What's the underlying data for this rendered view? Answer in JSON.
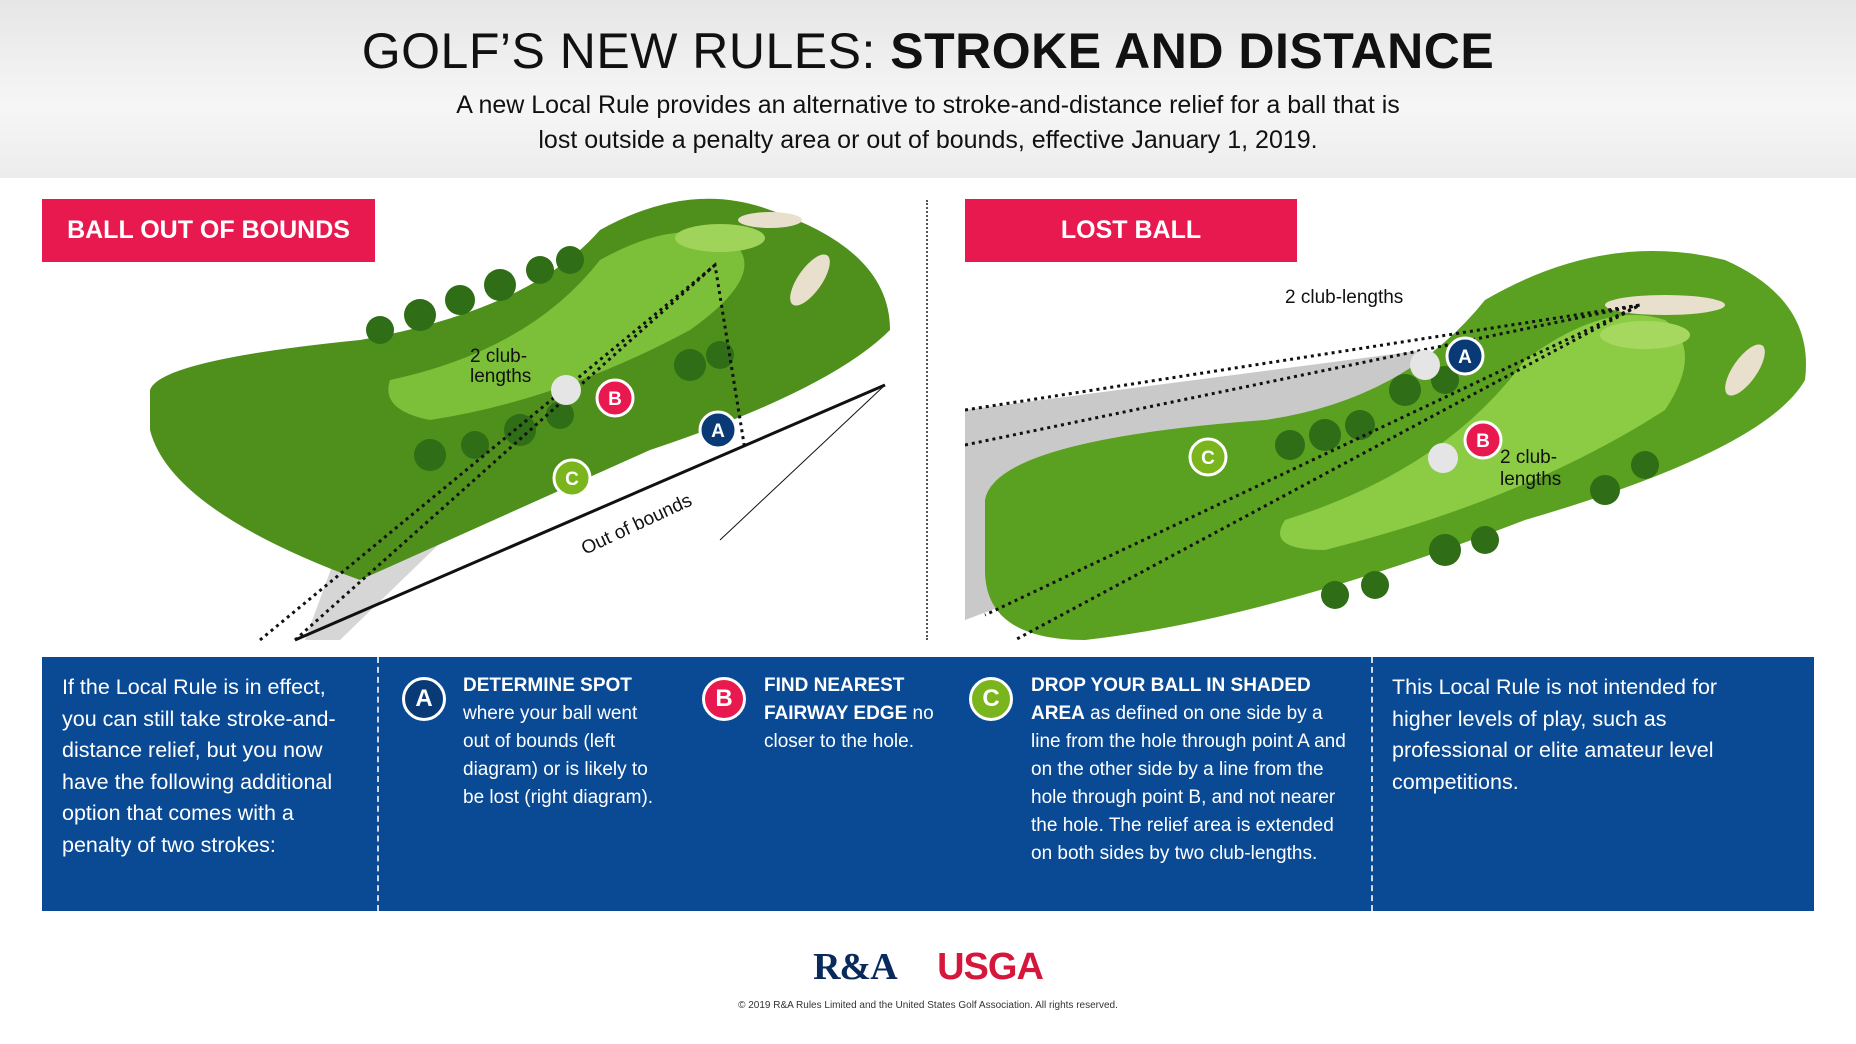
{
  "header": {
    "title_light": "GOLF’S NEW RULES: ",
    "title_bold": "STROKE AND DISTANCE",
    "subtitle_line1": "A new Local Rule provides an alternative to stroke-and-distance relief for a ball that is",
    "subtitle_line2": "lost outside a penalty area or out of bounds, effective January 1, 2019."
  },
  "left_diagram": {
    "tag": "BALL OUT OF BOUNDS",
    "club_lengths_1": "2 club-",
    "club_lengths_2": "lengths",
    "out_of_bounds": "Out of bounds",
    "markers": [
      "A",
      "B",
      "C"
    ]
  },
  "right_diagram": {
    "tag": "LOST BALL",
    "club_lengths_top": "2 club-lengths",
    "club_lengths_1": "2 club-",
    "club_lengths_2": "lengths",
    "markers": [
      "A",
      "B",
      "C"
    ]
  },
  "panel": {
    "intro": "If the Local Rule is in effect, you can still take stroke-and-distance relief, but you now have the following additional option that comes with a penalty of two strokes:",
    "steps": [
      {
        "letter": "A",
        "heading": "DETERMINE SPOT",
        "text": " where your ball went out of bounds (left diagram) or is likely to be lost (right diagram).",
        "color": "#0a3a75"
      },
      {
        "letter": "B",
        "heading": "FIND NEAREST FAIRWAY EDGE",
        "text": " no closer to the hole.",
        "color": "#e8194f"
      },
      {
        "letter": "C",
        "heading": "DROP YOUR BALL IN SHADED AREA",
        "text": " as defined on one side by a line from the hole through point A and on the other side by a line from the hole through point B, and not nearer the hole. The relief area is extended on both sides by two club-lengths.",
        "color": "#7ab51d"
      }
    ],
    "note": "This Local Rule is not intended for higher levels of play, such as professional or elite amateur level competitions."
  },
  "footer": {
    "logo_ra": "R&A",
    "logo_usga": "USGA",
    "copyright": "© 2019 R&A Rules Limited and the United States Golf Association. All rights reserved."
  },
  "colors": {
    "tag": "#e8194f",
    "panel": "#0a4a95",
    "fairway": "#6aa52a",
    "rough": "#4f8f1c"
  }
}
